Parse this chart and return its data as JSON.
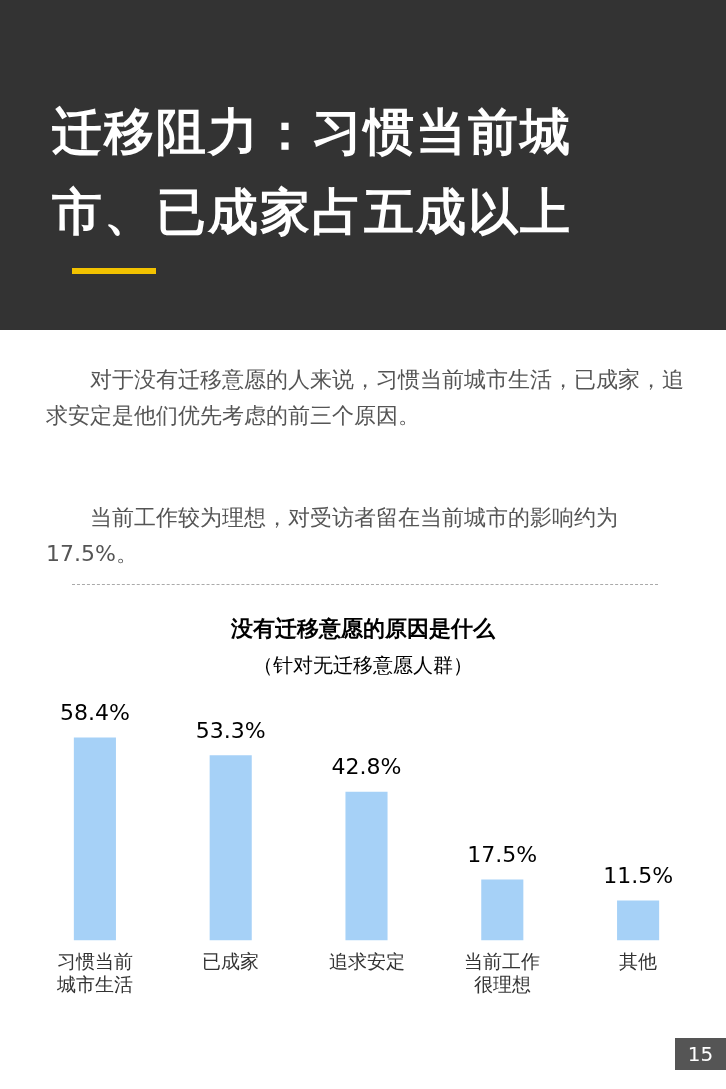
{
  "chart_data": {
    "type": "bar",
    "title": "没有迁移意愿的原因是什么",
    "subtitle": "（针对无迁移意愿人群）",
    "categories": [
      "习惯当前城市生活",
      "已成家",
      "追求安定",
      "当前工作很理想",
      "其他"
    ],
    "values": [
      58.4,
      53.3,
      42.8,
      17.5,
      11.5
    ],
    "color": "#a6d1f7",
    "value_labels": [
      "58.4%",
      "53.3%",
      "42.8%",
      "17.5%",
      "11.5%"
    ],
    "annotations": [
      "迁移阻力：习惯当前城市、已成家占五成以上",
      "对于没有迁移意愿的人来说，习惯当前城市生活，已成家，追求安定是他们优先考虑的前三个原因。",
      "当前工作较为理想，对受访者留在当前城市的影响约为17.5%。",
      "15"
    ]
  }
}
